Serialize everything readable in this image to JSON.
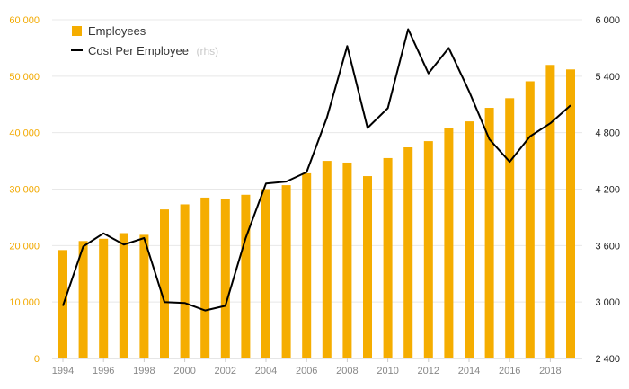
{
  "chart_data": {
    "type": "bar",
    "x": [
      1994,
      1995,
      1996,
      1997,
      1998,
      1999,
      2000,
      2001,
      2002,
      2003,
      2004,
      2005,
      2006,
      2007,
      2008,
      2009,
      2010,
      2011,
      2012,
      2013,
      2014,
      2015,
      2016,
      2017,
      2018,
      2019
    ],
    "x_tick_labels": [
      "1994",
      "1996",
      "1998",
      "2000",
      "2002",
      "2004",
      "2006",
      "2008",
      "2010",
      "2012",
      "2014",
      "2016",
      "2018"
    ],
    "series": [
      {
        "name": "Employees",
        "type": "bar",
        "axis": "left",
        "color": "#f5ad00",
        "values": [
          19200,
          20800,
          21200,
          22200,
          21900,
          26400,
          27300,
          28500,
          28300,
          29000,
          30000,
          30700,
          32800,
          35000,
          34700,
          32300,
          35500,
          37400,
          38500,
          40900,
          42000,
          44400,
          46100,
          49100,
          52000,
          51200
        ]
      },
      {
        "name": "Cost Per Employee",
        "name_note": "(rhs)",
        "type": "line",
        "axis": "right",
        "color": "#000000",
        "values": [
          2960,
          3590,
          3730,
          3610,
          3680,
          3000,
          2990,
          2910,
          2960,
          3680,
          4260,
          4280,
          4380,
          4960,
          5720,
          4850,
          5060,
          5900,
          5430,
          5700,
          5240,
          4730,
          4490,
          4760,
          4900,
          5090
        ]
      }
    ],
    "left_axis": {
      "min": 0,
      "max": 60000,
      "ticks": [
        0,
        10000,
        20000,
        30000,
        40000,
        50000,
        60000
      ],
      "tick_labels": [
        "0",
        "10 000",
        "20 000",
        "30 000",
        "40 000",
        "50 000",
        "60 000"
      ],
      "color": "#f2a900"
    },
    "right_axis": {
      "min": 2400,
      "max": 6000,
      "ticks": [
        2400,
        3000,
        3600,
        4200,
        4800,
        5400,
        6000
      ],
      "tick_labels": [
        "2 400",
        "3 000",
        "3 600",
        "4 200",
        "4 800",
        "5 400",
        "6 000"
      ],
      "color": "#222222"
    },
    "grid": true,
    "legend_position": "top-left",
    "title": "",
    "xlabel": "",
    "ylabel": ""
  }
}
